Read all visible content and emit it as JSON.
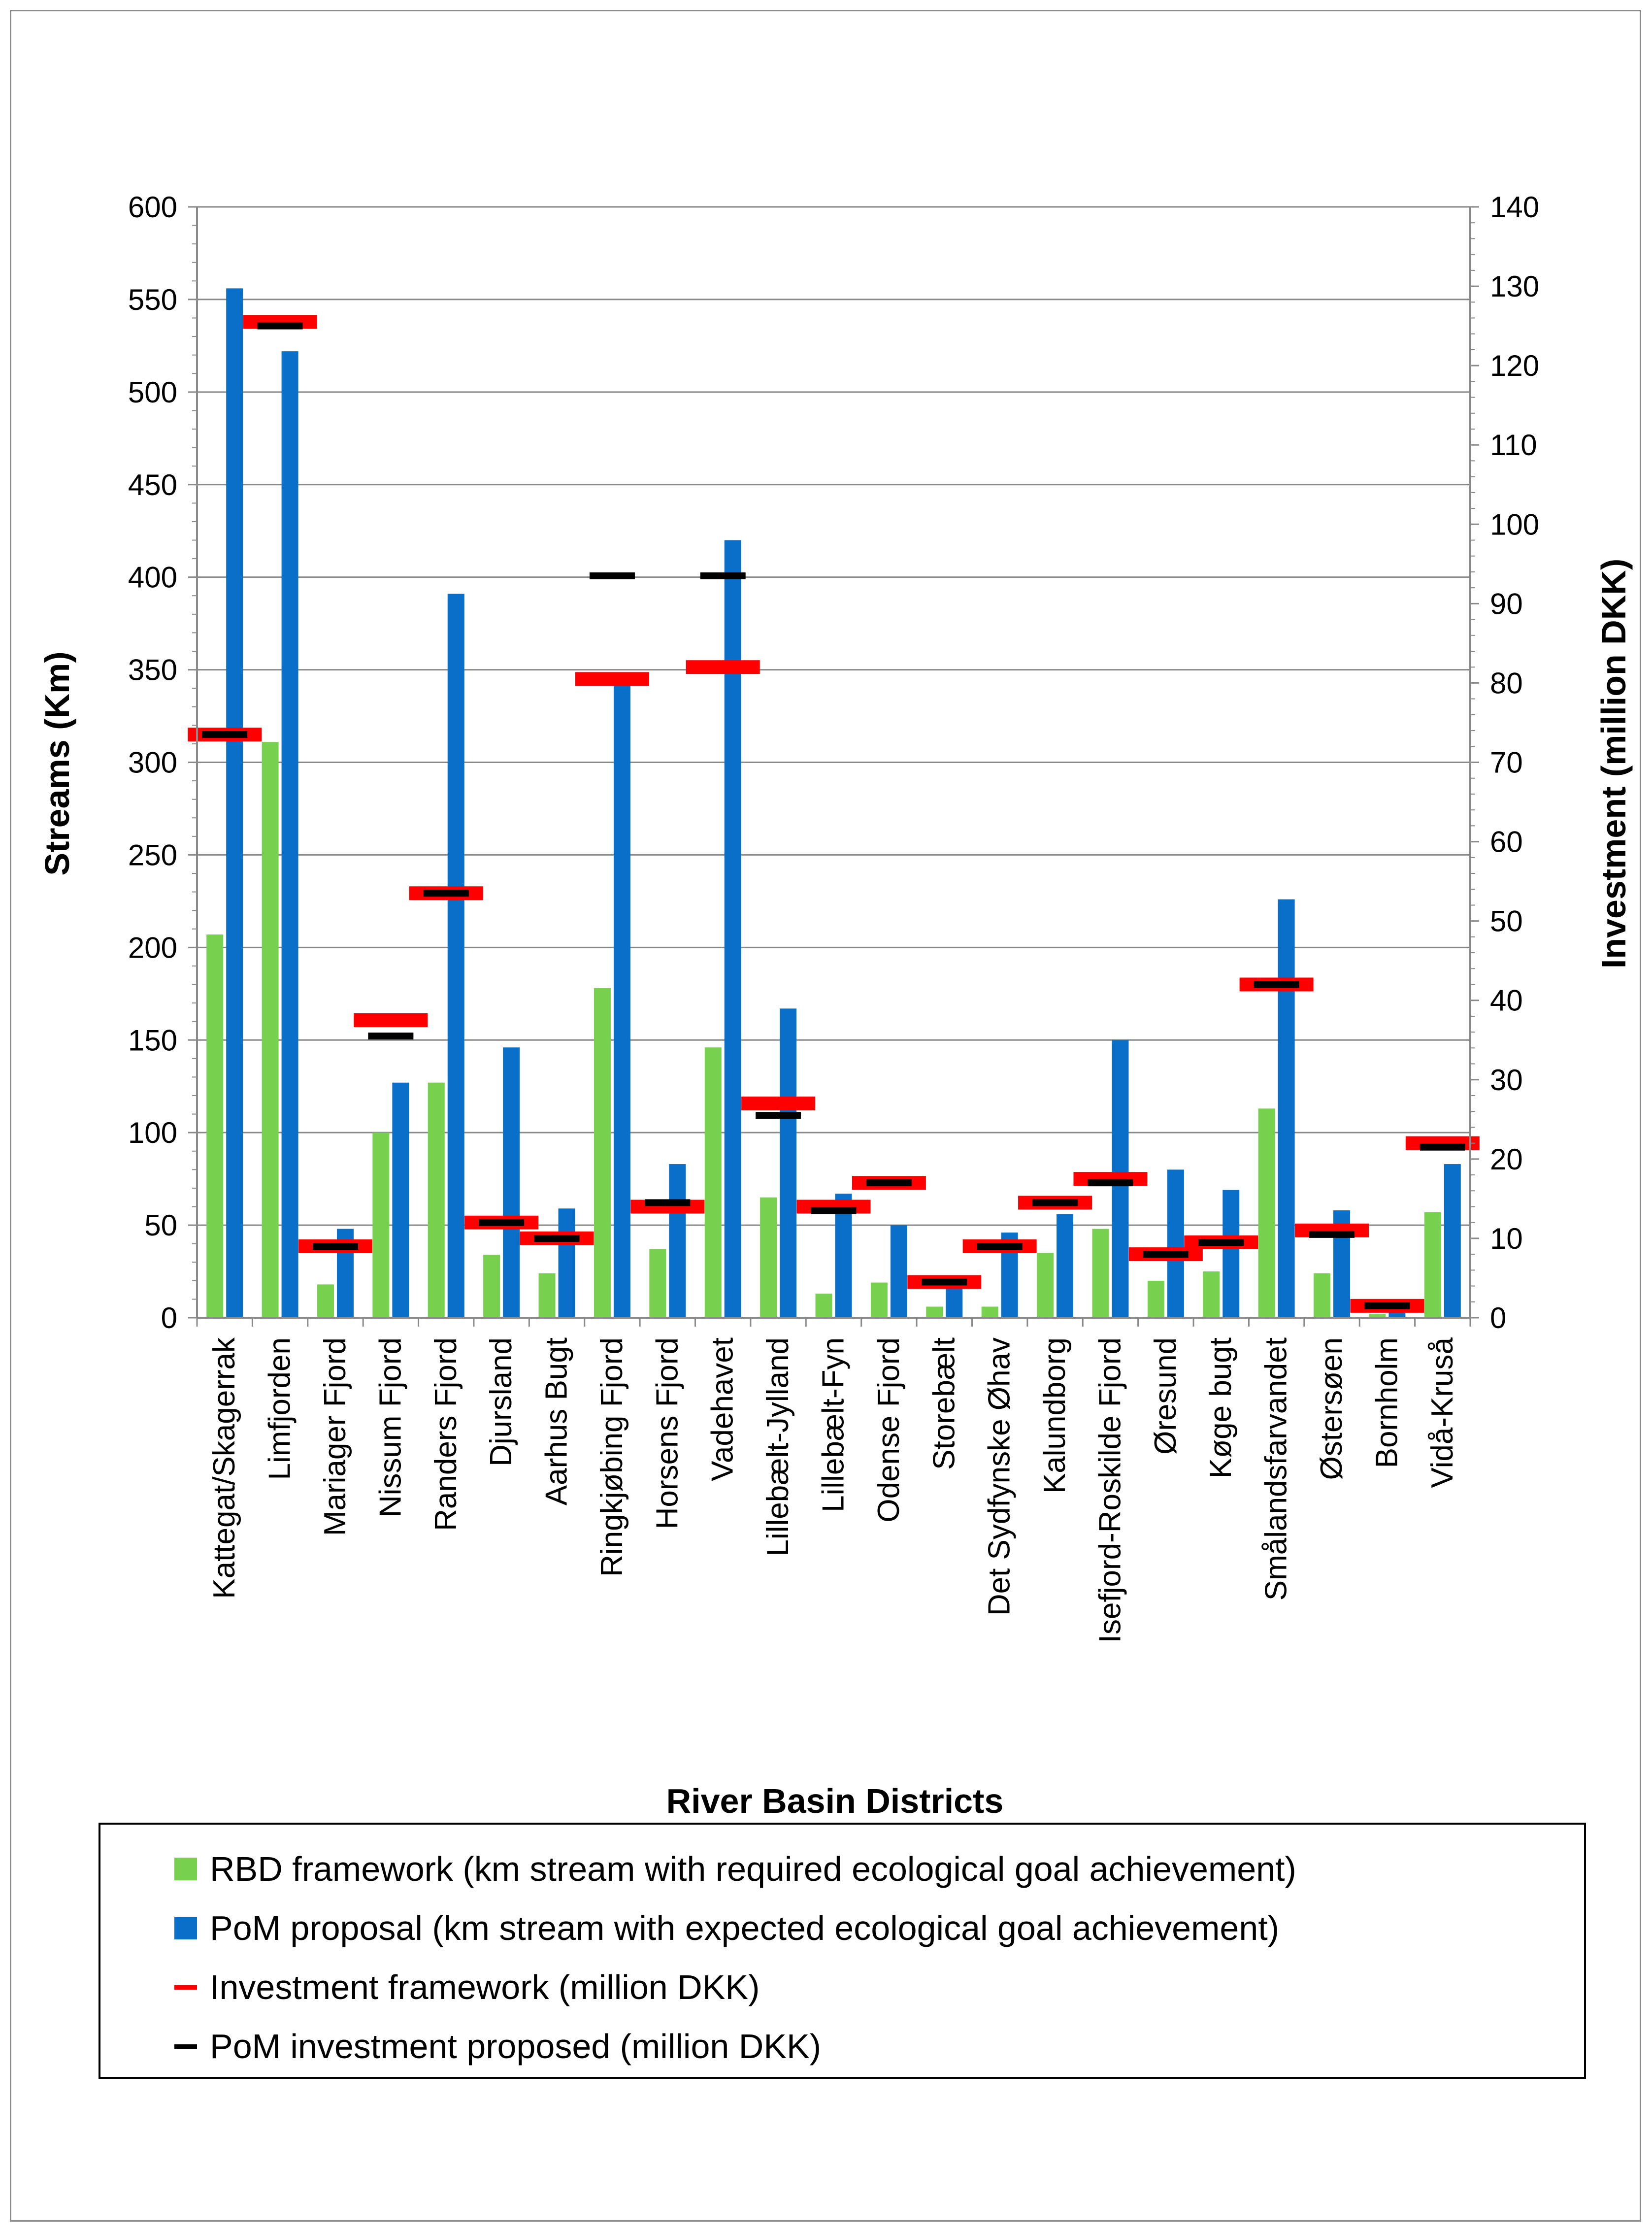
{
  "chart_data": {
    "type": "bar",
    "title": "",
    "xlabel": "River Basin Districts",
    "ylabel": "Streams (Km)",
    "y2label": "Investment (million DKK)",
    "ylim": [
      0,
      600
    ],
    "y2lim": [
      0,
      140
    ],
    "yticks": [
      0,
      50,
      100,
      150,
      200,
      250,
      300,
      350,
      400,
      450,
      500,
      550,
      600
    ],
    "y2ticks": [
      0,
      10,
      20,
      30,
      40,
      50,
      60,
      70,
      80,
      90,
      100,
      110,
      120,
      130,
      140
    ],
    "grid": true,
    "legend_position": "bottom",
    "categories": [
      "Kattegat/Skagerrak",
      "Limfjorden",
      "Mariager Fjord",
      "Nissum Fjord",
      "Randers Fjord",
      "Djursland",
      "Aarhus Bugt",
      "Ringkjøbing Fjord",
      "Horsens Fjord",
      "Vadehavet",
      "Lillebælt-Jylland",
      "Lillebælt-Fyn",
      "Odense Fjord",
      "Storebælt",
      "Det Sydfynske Øhav",
      "Kalundborg",
      "Isefjord-Roskilde Fjord",
      "Øresund",
      "Køge bugt",
      "Smålandsfarvandet",
      "Østersøen",
      "Bornholm",
      "Vidå-Kruså"
    ],
    "series": [
      {
        "name": "RBD framework (km stream with required ecological goal achievement)",
        "type": "bar",
        "axis": "left",
        "color": "#77d14f",
        "values": [
          207,
          311,
          18,
          100,
          127,
          34,
          24,
          178,
          37,
          146,
          65,
          13,
          19,
          6,
          6,
          35,
          48,
          20,
          25,
          113,
          24,
          2,
          57
        ]
      },
      {
        "name": "PoM proposal  (km stream with expected ecological goal achievement)",
        "type": "bar",
        "axis": "left",
        "color": "#0a6fc9",
        "values": [
          556,
          522,
          48,
          127,
          391,
          146,
          59,
          342,
          83,
          420,
          167,
          67,
          50,
          20,
          46,
          56,
          150,
          80,
          69,
          226,
          58,
          7,
          83
        ]
      },
      {
        "name": "Investment framework (million DKK)",
        "type": "marker",
        "axis": "right",
        "color": "#ff0000",
        "values": [
          73.5,
          125.5,
          9,
          37.5,
          53.5,
          12,
          10,
          80.5,
          14,
          82,
          27,
          14,
          17,
          4.5,
          9,
          14.5,
          17.5,
          8,
          9.5,
          42,
          11,
          1.5,
          22
        ]
      },
      {
        "name": "PoM investment proposed (million DKK)",
        "type": "marker",
        "axis": "right",
        "color": "#000000",
        "values": [
          73.5,
          125,
          9,
          35.5,
          53.5,
          12,
          10,
          93.5,
          14.5,
          93.5,
          25.5,
          13.5,
          17,
          4.5,
          9,
          14.5,
          17,
          8,
          9.5,
          42,
          10.5,
          1.5,
          21.5
        ]
      }
    ]
  }
}
